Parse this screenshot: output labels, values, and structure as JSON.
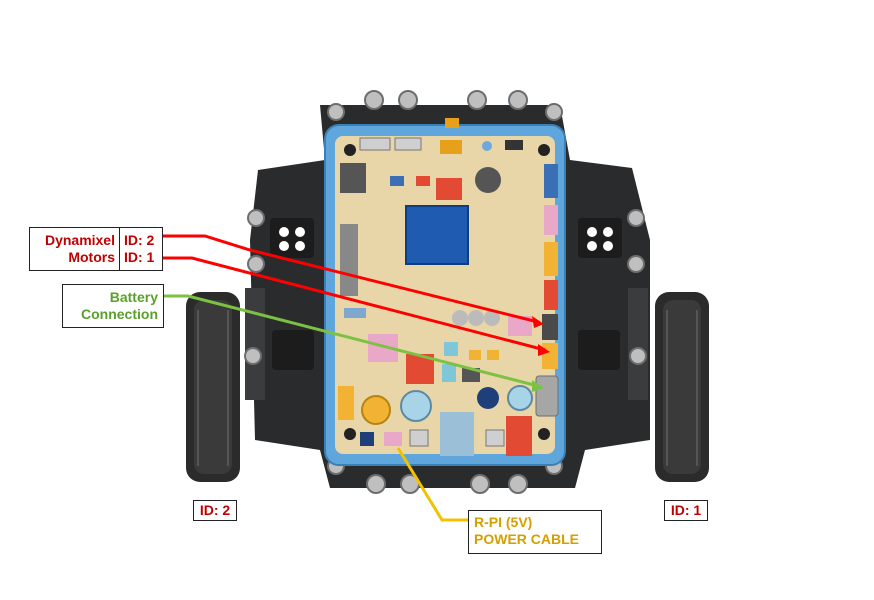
{
  "labels": {
    "dynamixel": "Dynamixel",
    "motors": "Motors",
    "id_2": "ID: 2",
    "id_1": "ID: 1",
    "battery_line1": "Battery",
    "battery_line2": "Connection",
    "wheel_left_id": "ID: 2",
    "wheel_right_id": "ID: 1",
    "rpi_line1": "R-PI (5V)",
    "rpi_line2": "POWER CABLE"
  },
  "colors": {
    "motor_arrow": "#ff0000",
    "battery_arrow": "#7cc242",
    "rpi_arrow": "#f2c200",
    "chassis": "#2a2b2d",
    "frame": "#5fa6dc",
    "board": "#e8d5a8",
    "mcu": "#1f5bb0"
  }
}
